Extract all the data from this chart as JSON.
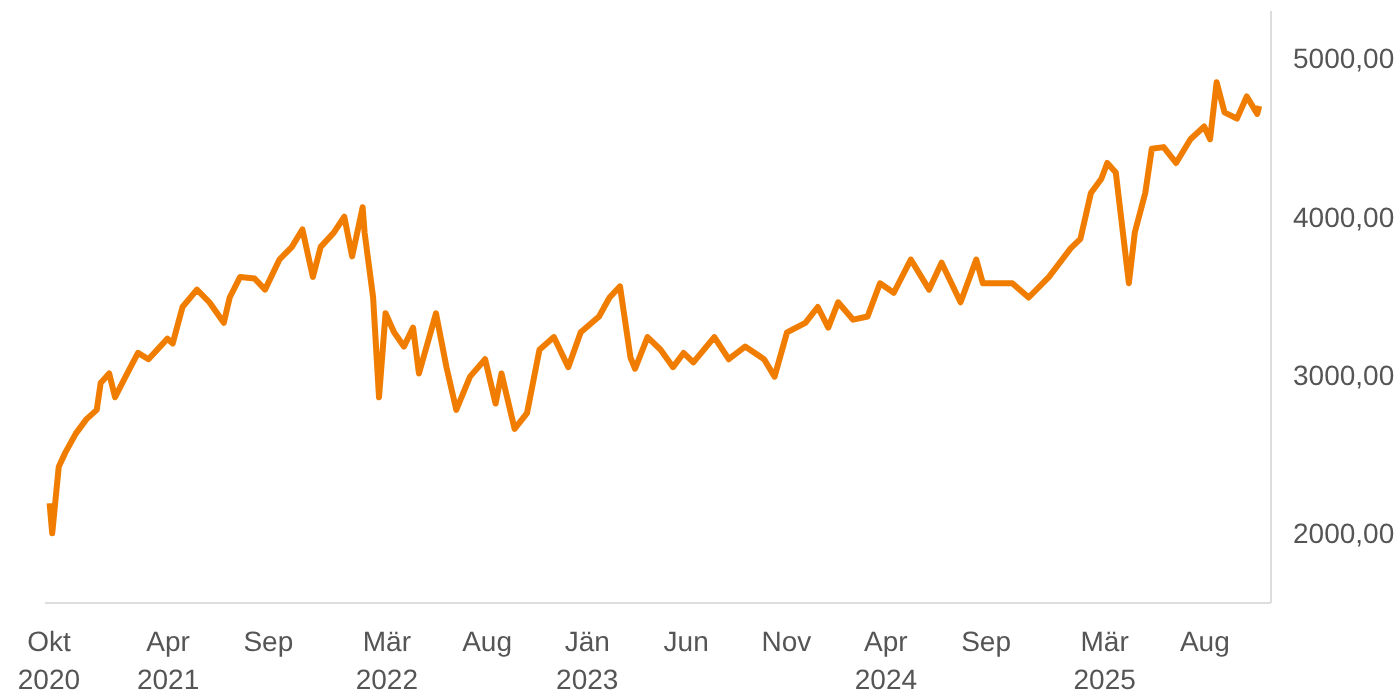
{
  "chart_data": {
    "type": "line",
    "x": [
      "2020-10-02",
      "2020-10-06",
      "2020-10-16",
      "2020-10-26",
      "2020-11-11",
      "2020-11-27",
      "2020-12-13",
      "2020-12-19",
      "2021-01-01",
      "2021-01-10",
      "2021-01-26",
      "2021-02-14",
      "2021-03-02",
      "2021-03-31",
      "2021-04-08",
      "2021-04-23",
      "2021-05-15",
      "2021-06-03",
      "2021-06-25",
      "2021-07-04",
      "2021-07-20",
      "2021-08-11",
      "2021-08-27",
      "2021-09-18",
      "2021-10-07",
      "2021-10-23",
      "2021-11-08",
      "2021-11-20",
      "2021-12-10",
      "2021-12-26",
      "2022-01-07",
      "2022-01-23",
      "2022-01-26",
      "2022-02-08",
      "2022-02-17",
      "2022-02-27",
      "2022-03-12",
      "2022-03-27",
      "2022-04-10",
      "2022-04-19",
      "2022-05-15",
      "2022-05-31",
      "2022-06-15",
      "2022-07-06",
      "2022-07-29",
      "2022-08-14",
      "2022-08-23",
      "2022-09-12",
      "2022-10-01",
      "2022-10-20",
      "2022-11-11",
      "2022-12-03",
      "2022-12-22",
      "2023-01-19",
      "2023-02-04",
      "2023-02-20",
      "2023-03-08",
      "2023-03-15",
      "2023-04-03",
      "2023-04-23",
      "2023-05-12",
      "2023-05-28",
      "2023-06-12",
      "2023-07-14",
      "2023-08-05",
      "2023-08-30",
      "2023-09-28",
      "2023-10-14",
      "2023-11-02",
      "2023-11-30",
      "2023-12-19",
      "2024-01-04",
      "2024-01-19",
      "2024-02-11",
      "2024-03-04",
      "2024-03-23",
      "2024-04-13",
      "2024-05-09",
      "2024-06-06",
      "2024-06-25",
      "2024-07-24",
      "2024-08-17",
      "2024-08-27",
      "2024-10-11",
      "2024-11-05",
      "2024-12-06",
      "2025-01-08",
      "2025-01-23",
      "2025-02-08",
      "2025-02-24",
      "2025-03-05",
      "2025-03-18",
      "2025-04-07",
      "2025-04-16",
      "2025-05-02",
      "2025-05-12",
      "2025-05-30",
      "2025-06-18",
      "2025-07-10",
      "2025-07-31",
      "2025-08-09",
      "2025-08-19",
      "2025-08-31",
      "2025-09-19",
      "2025-10-04",
      "2025-10-20",
      "2025-10-23"
    ],
    "series": [
      {
        "color": "#f07d00",
        "values": [
          2190,
          2000,
          2420,
          2510,
          2630,
          2720,
          2780,
          2950,
          3010,
          2860,
          2990,
          3140,
          3100,
          3230,
          3200,
          3430,
          3540,
          3460,
          3330,
          3490,
          3620,
          3610,
          3540,
          3730,
          3810,
          3920,
          3620,
          3810,
          3900,
          4000,
          3750,
          4060,
          3900,
          3490,
          2860,
          3390,
          3270,
          3180,
          3300,
          3010,
          3390,
          3050,
          2780,
          2990,
          3100,
          2820,
          3010,
          2660,
          2760,
          3160,
          3240,
          3050,
          3270,
          3370,
          3490,
          3560,
          3110,
          3040,
          3240,
          3160,
          3050,
          3140,
          3080,
          3240,
          3100,
          3180,
          3100,
          2990,
          3270,
          3330,
          3430,
          3300,
          3460,
          3350,
          3370,
          3580,
          3520,
          3730,
          3540,
          3710,
          3460,
          3730,
          3580,
          3580,
          3490,
          3620,
          3800,
          3860,
          4150,
          4240,
          4340,
          4280,
          3580,
          3900,
          4150,
          4430,
          4440,
          4340,
          4490,
          4570,
          4490,
          4850,
          4660,
          4620,
          4760,
          4650,
          4700
        ]
      }
    ],
    "yticks": [
      {
        "value": 2000,
        "label": "2000,00"
      },
      {
        "value": 3000,
        "label": "3000,00"
      },
      {
        "value": 4000,
        "label": "4000,00"
      },
      {
        "value": 5000,
        "label": "5000,00"
      }
    ],
    "xticks": [
      {
        "value": "2020-10-01",
        "label": "Okt\n2020"
      },
      {
        "value": "2021-04-01",
        "label": "Apr\n2021"
      },
      {
        "value": "2021-09-01",
        "label": "Sep"
      },
      {
        "value": "2022-03-01",
        "label": "Mär\n2022"
      },
      {
        "value": "2022-08-01",
        "label": "Aug"
      },
      {
        "value": "2023-01-01",
        "label": "Jän\n2023"
      },
      {
        "value": "2023-06-01",
        "label": "Jun"
      },
      {
        "value": "2023-11-01",
        "label": "Nov"
      },
      {
        "value": "2024-04-01",
        "label": "Apr\n2024"
      },
      {
        "value": "2024-09-01",
        "label": "Sep"
      },
      {
        "value": "2025-03-01",
        "label": "Mär\n2025"
      },
      {
        "value": "2025-08-01",
        "label": "Aug"
      }
    ],
    "xlim": [
      "2020-09-25",
      "2025-11-10"
    ],
    "ylim": [
      1560,
      5300
    ],
    "grid": false,
    "marker": "none",
    "line_style": "solid"
  }
}
